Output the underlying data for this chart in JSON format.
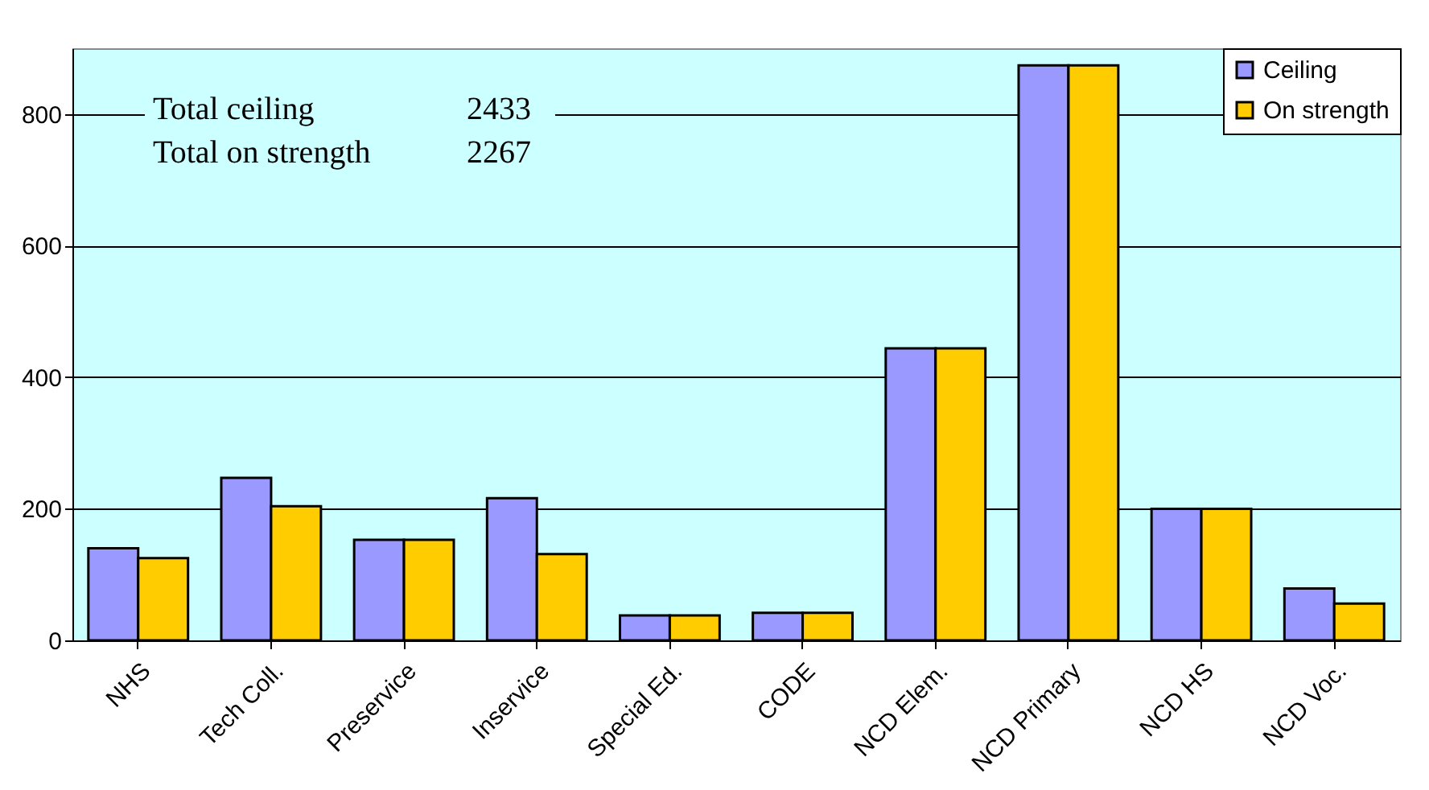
{
  "chart_data": {
    "type": "bar",
    "categories": [
      "NHS",
      "Tech Coll.",
      "Preservice",
      "Inservice",
      "Special Ed.",
      "CODE",
      "NCD Elem.",
      "NCD Primary",
      "NCD HS",
      "NCD Voc."
    ],
    "series": [
      {
        "name": "Ceiling",
        "color": "#9999ff",
        "values": [
          140,
          247,
          153,
          216,
          38,
          42,
          444,
          874,
          200,
          79
        ]
      },
      {
        "name": "On strength",
        "color": "#ffcc00",
        "values": [
          125,
          204,
          153,
          131,
          38,
          42,
          444,
          874,
          200,
          56
        ]
      }
    ],
    "ylim": [
      0,
      900
    ],
    "yticks": [
      0,
      200,
      400,
      600,
      800
    ],
    "grid": "y",
    "legend": "top right",
    "annotations": [
      "Total ceiling",
      "2433",
      "Total on strength",
      "2267"
    ]
  }
}
